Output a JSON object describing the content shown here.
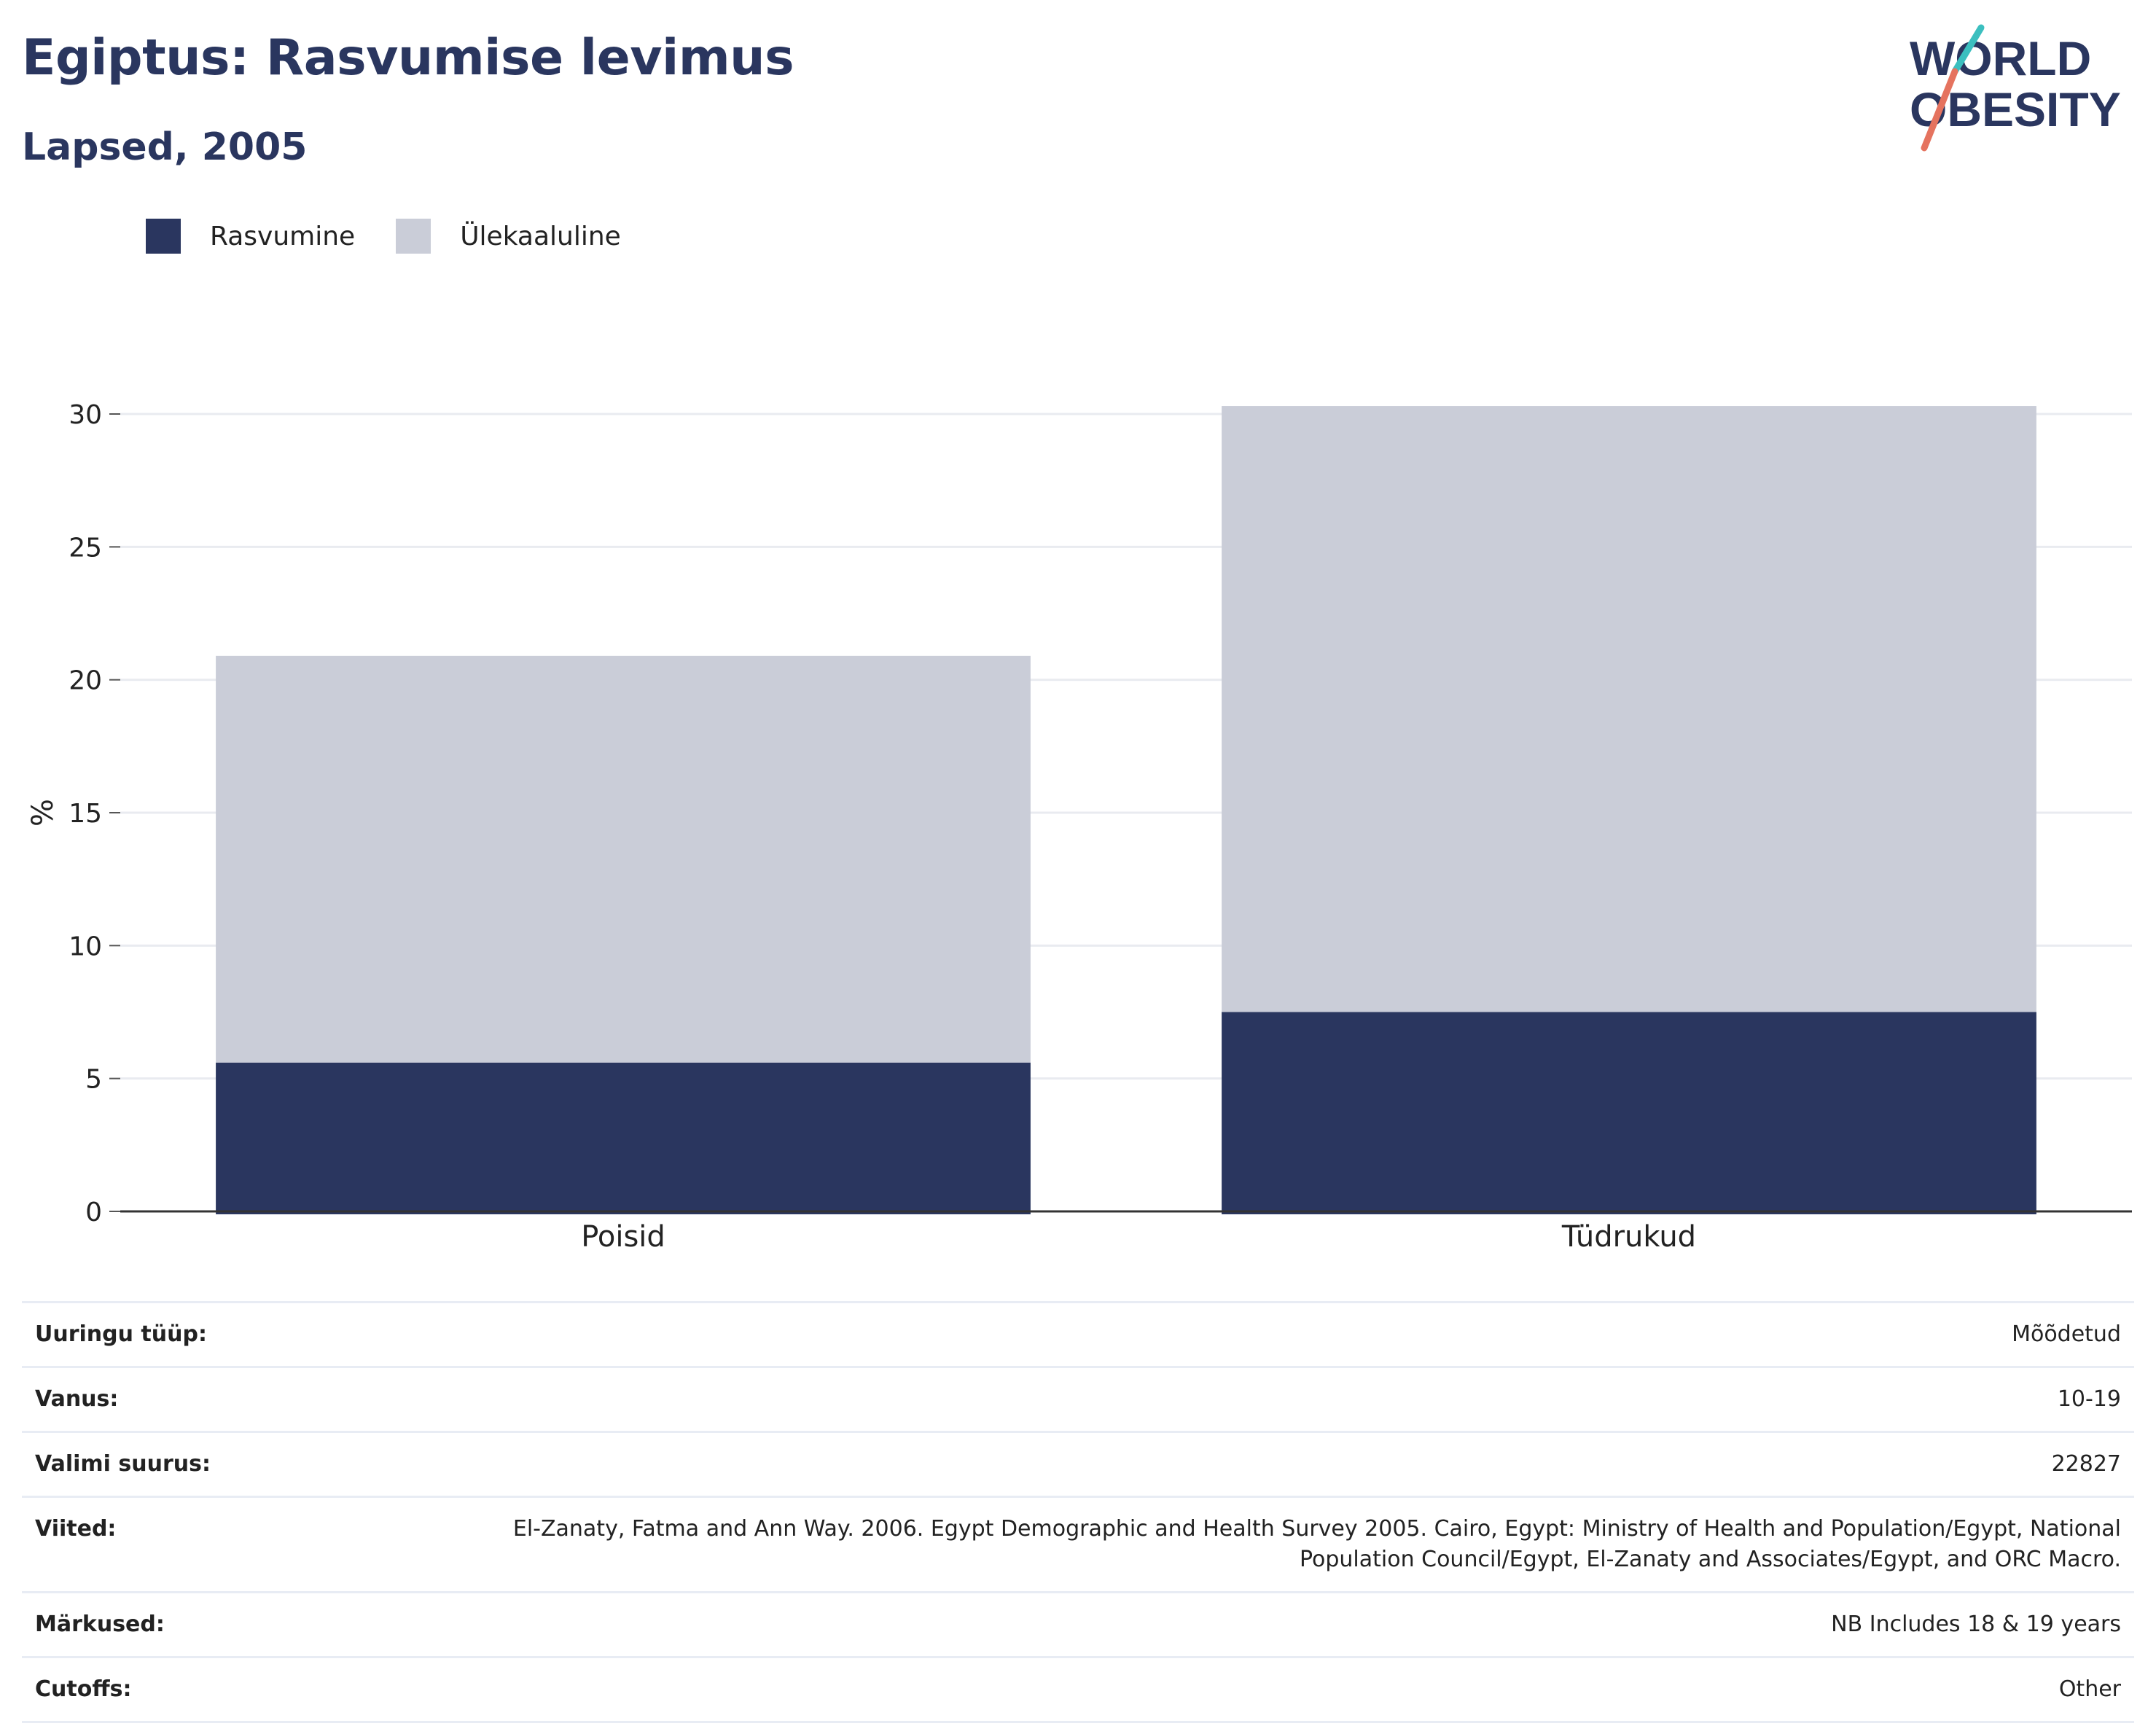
{
  "header": {
    "title": "Egiptus: Rasvumise levimus",
    "subtitle": "Lapsed, 2005"
  },
  "logo": {
    "line1": "WORLD",
    "line2": "OBESITY",
    "accent_teal": "#3bbfbf",
    "accent_coral": "#e5735f"
  },
  "colors": {
    "obesity": "#2a365f",
    "overweight": "#cacdd8",
    "text": "#2a365f",
    "grid": "#e9ebf0",
    "axis": "#333333"
  },
  "chart_data": {
    "type": "bar",
    "stacked": true,
    "categories": [
      "Poisid",
      "Tüdrukud"
    ],
    "series": [
      {
        "name": "Rasvumine",
        "values": [
          5.6,
          7.5
        ],
        "color": "#2a365f"
      },
      {
        "name": "Ülekaaluline",
        "values": [
          15.3,
          22.8
        ],
        "color": "#cacdd8"
      }
    ],
    "totals": [
      20.9,
      30.3
    ],
    "ylabel": "%",
    "xlabel": "",
    "ylim": [
      0,
      30
    ],
    "yticks": [
      0,
      5,
      10,
      15,
      20,
      25,
      30
    ],
    "grid": true,
    "legend_position": "top-left"
  },
  "meta": [
    {
      "key": "Uuringu tüüp:",
      "value": "Mõõdetud"
    },
    {
      "key": "Vanus:",
      "value": "10-19"
    },
    {
      "key": "Valimi suurus:",
      "value": "22827"
    },
    {
      "key": "Viited:",
      "value": "El-Zanaty, Fatma and Ann Way. 2006. Egypt Demographic and Health Survey 2005. Cairo, Egypt: Ministry of Health and Population/Egypt, National Population Council/Egypt, El-Zanaty and Associates/Egypt, and ORC Macro."
    },
    {
      "key": "Märkused:",
      "value": "NB Includes 18 & 19 years"
    },
    {
      "key": "Cutoffs:",
      "value": "Other"
    }
  ]
}
